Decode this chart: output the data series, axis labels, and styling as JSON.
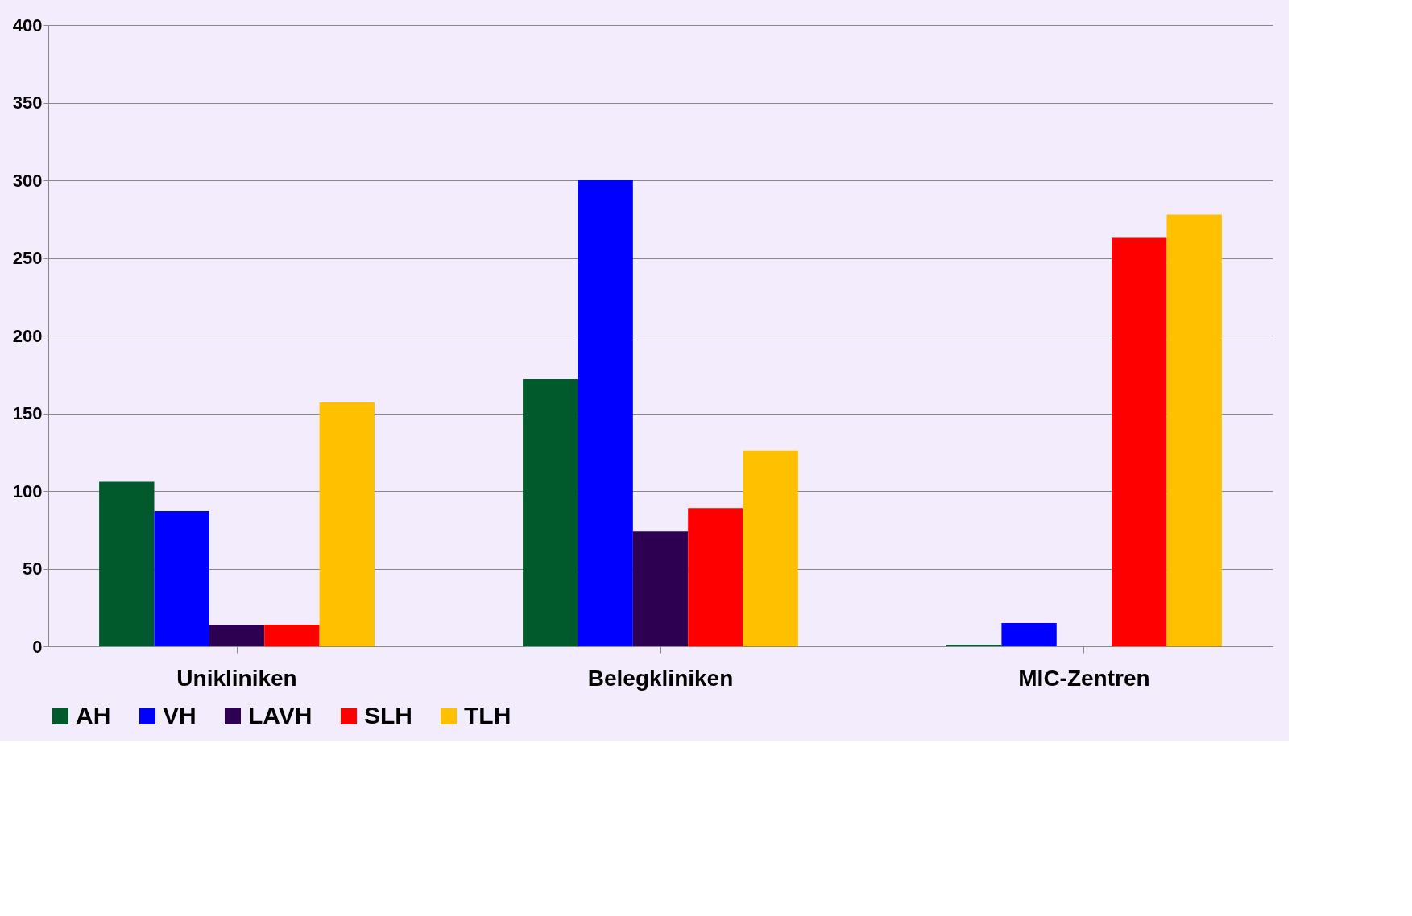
{
  "chart_data": {
    "type": "bar",
    "categories": [
      "Unikliniken",
      "Belegkliniken",
      "MIC-Zentren"
    ],
    "series": [
      {
        "name": "AH",
        "color": "#005a2b",
        "values": [
          106,
          172,
          1
        ]
      },
      {
        "name": "VH",
        "color": "#0000ff",
        "values": [
          87,
          300,
          15
        ]
      },
      {
        "name": "LAVH",
        "color": "#2e0052",
        "values": [
          14,
          74,
          0
        ]
      },
      {
        "name": "SLH",
        "color": "#ff0000",
        "values": [
          14,
          89,
          263
        ]
      },
      {
        "name": "TLH",
        "color": "#ffc000",
        "values": [
          157,
          126,
          278
        ]
      }
    ],
    "ylim": [
      0,
      400
    ],
    "yticks": [
      0,
      50,
      100,
      150,
      200,
      250,
      300,
      350,
      400
    ],
    "grid": "y",
    "legend": "bottom"
  }
}
